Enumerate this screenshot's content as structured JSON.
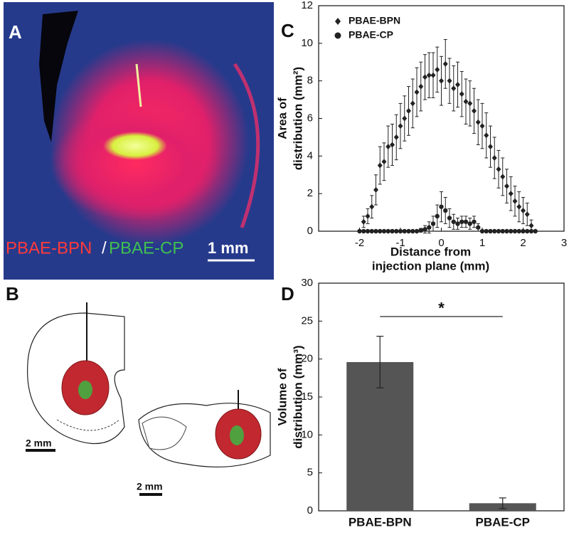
{
  "figure": {
    "panel_a": {
      "letter": "A",
      "label_left": "PBAE-BPN",
      "label_sep": "/",
      "label_right": "PBAE-CP",
      "scale": "1 mm"
    },
    "panel_b": {
      "letter": "B",
      "scale_left": "2 mm",
      "scale_right": "2 mm"
    },
    "panel_c": {
      "letter": "C"
    },
    "panel_d": {
      "letter": "D"
    }
  },
  "chart_data": [
    {
      "type": "errorscatter",
      "xlabel": [
        "Distance from",
        "injection plane (mm)"
      ],
      "ylabel": [
        "Area of",
        "distribution (mm²)"
      ],
      "xlim": [
        -3,
        3
      ],
      "xticks": [
        -2,
        -1,
        0,
        1,
        2,
        3
      ],
      "ylim": [
        0,
        12
      ],
      "yticks": [
        0,
        2,
        4,
        6,
        8,
        10,
        12
      ],
      "legend": "upper left",
      "series": [
        {
          "name": "PBAE-BPN",
          "color": "#222222",
          "marker": "diamond",
          "x": [
            -1.9,
            -1.8,
            -1.7,
            -1.6,
            -1.5,
            -1.4,
            -1.3,
            -1.2,
            -1.1,
            -1.0,
            -0.9,
            -0.8,
            -0.7,
            -0.6,
            -0.5,
            -0.4,
            -0.3,
            -0.2,
            -0.1,
            0.0,
            0.1,
            0.2,
            0.3,
            0.4,
            0.5,
            0.6,
            0.7,
            0.8,
            0.9,
            1.0,
            1.1,
            1.2,
            1.3,
            1.4,
            1.5,
            1.6,
            1.7,
            1.8,
            1.9,
            2.0,
            2.1,
            2.2
          ],
          "values": [
            0.5,
            0.8,
            1.3,
            2.2,
            3.5,
            3.7,
            4.5,
            4.6,
            5.0,
            5.6,
            6.0,
            6.4,
            6.8,
            7.4,
            7.7,
            8.2,
            8.3,
            8.3,
            8.6,
            8.0,
            8.9,
            8.0,
            7.6,
            7.8,
            7.3,
            6.9,
            6.8,
            6.4,
            5.8,
            5.6,
            5.1,
            4.5,
            3.9,
            3.3,
            2.9,
            2.4,
            2.0,
            1.6,
            1.3,
            1.1,
            0.9,
            0.3
          ],
          "errors": [
            0.3,
            0.4,
            0.6,
            0.8,
            1.0,
            1.0,
            1.1,
            1.1,
            1.2,
            1.2,
            1.2,
            1.3,
            1.3,
            1.3,
            1.3,
            1.2,
            1.2,
            1.2,
            1.2,
            1.3,
            1.3,
            1.2,
            1.2,
            1.2,
            1.2,
            1.2,
            1.2,
            1.2,
            1.2,
            1.2,
            1.2,
            1.1,
            1.1,
            1.0,
            1.0,
            0.9,
            0.9,
            0.8,
            0.8,
            0.7,
            0.6,
            0.3
          ]
        },
        {
          "name": "PBAE-CP",
          "color": "#222222",
          "marker": "circle",
          "x": [
            -2.0,
            -1.9,
            -1.8,
            -1.7,
            -1.6,
            -1.5,
            -1.4,
            -1.3,
            -1.2,
            -1.1,
            -1.0,
            -0.9,
            -0.8,
            -0.7,
            -0.6,
            -0.5,
            -0.4,
            -0.3,
            -0.2,
            -0.1,
            0.0,
            0.1,
            0.2,
            0.3,
            0.4,
            0.5,
            0.6,
            0.7,
            0.8,
            0.9,
            1.0,
            1.1,
            1.2,
            1.3,
            1.4,
            1.5,
            1.6,
            1.7,
            1.8,
            1.9,
            2.0,
            2.1,
            2.2,
            2.3
          ],
          "values": [
            0,
            0,
            0,
            0,
            0,
            0,
            0,
            0,
            0,
            0,
            0,
            0,
            0,
            0,
            0,
            0.05,
            0.1,
            0.2,
            0.4,
            0.8,
            1.3,
            1.1,
            0.7,
            0.5,
            0.4,
            0.5,
            0.5,
            0.4,
            0.5,
            0.2,
            0,
            0,
            0,
            0,
            0,
            0,
            0,
            0,
            0,
            0,
            0,
            0,
            0,
            0
          ],
          "errors": [
            0,
            0,
            0,
            0,
            0,
            0,
            0,
            0,
            0,
            0,
            0,
            0,
            0,
            0,
            0,
            0.1,
            0.2,
            0.3,
            0.4,
            0.6,
            0.8,
            0.7,
            0.5,
            0.4,
            0.3,
            0.3,
            0.3,
            0.3,
            0.3,
            0.2,
            0,
            0,
            0,
            0,
            0,
            0,
            0,
            0,
            0,
            0,
            0,
            0,
            0,
            0
          ]
        }
      ]
    },
    {
      "type": "bar",
      "ylabel": [
        "Volume of",
        "distribution (mm³)"
      ],
      "categories": [
        "PBAE-BPN",
        "PBAE-CP"
      ],
      "values": [
        19.6,
        1.0
      ],
      "errors": [
        3.4,
        0.7
      ],
      "color": "#555555",
      "ylim": [
        0,
        30
      ],
      "yticks": [
        0,
        5,
        10,
        15,
        20,
        25,
        30
      ],
      "significance": {
        "label": "*",
        "level": 25.6
      }
    }
  ]
}
